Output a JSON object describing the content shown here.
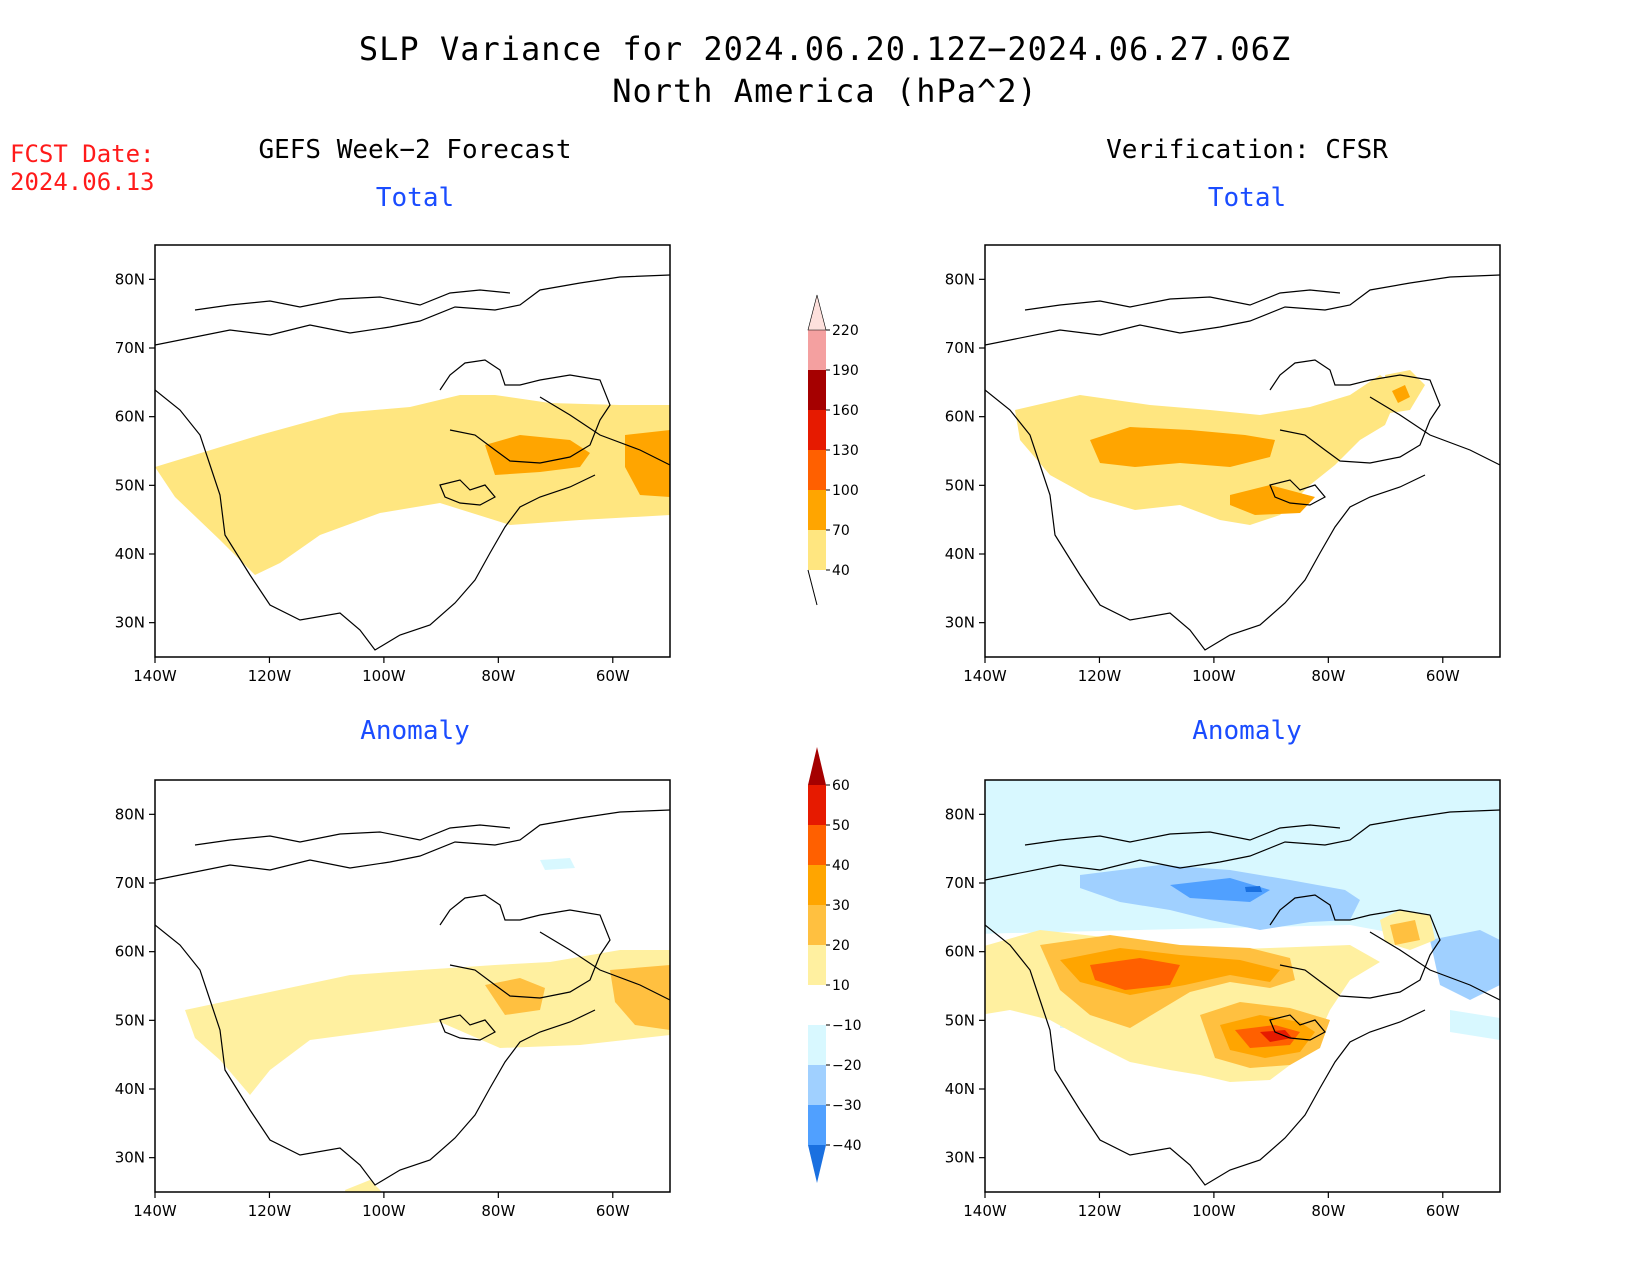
{
  "title": {
    "line1": "SLP Variance for 2024.06.20.12Z−2024.06.27.06Z",
    "line2": "North America (hPa^2)"
  },
  "fcst": {
    "label": "FCST Date:",
    "date": "2024.06.13"
  },
  "columns": {
    "left": "GEFS Week−2 Forecast",
    "right": "Verification: CFSR"
  },
  "panels": {
    "total": "Total",
    "anomaly": "Anomaly"
  },
  "axes": {
    "lat_labels": [
      "80N",
      "70N",
      "60N",
      "50N",
      "40N",
      "30N"
    ],
    "lon_labels": [
      "140W",
      "120W",
      "100W",
      "80W",
      "60W"
    ],
    "lon_range": [
      -140,
      -50
    ],
    "lat_range": [
      25,
      85
    ]
  },
  "colorbars": {
    "total": {
      "levels": [
        "40",
        "70",
        "100",
        "130",
        "160",
        "190",
        "220"
      ],
      "colors": [
        "#ffe680",
        "#ffa500",
        "#ff6000",
        "#e61a00",
        "#a50000",
        "#f4a0a0",
        "#fde0dc"
      ]
    },
    "anomaly": {
      "levels": [
        "60",
        "50",
        "40",
        "30",
        "20",
        "10",
        "−10",
        "−20",
        "−30",
        "−40"
      ],
      "colors": [
        "#a50000",
        "#e61a00",
        "#ff6000",
        "#ffa500",
        "#ffc040",
        "#fff0a0",
        "#ffffff",
        "#d8f8ff",
        "#a0d0ff",
        "#50a0ff",
        "#1a70e0"
      ]
    }
  },
  "colors": {
    "light_yellow": "#ffe680",
    "pale_yellow": "#fff0a0",
    "orange": "#ffa500",
    "orange_light": "#ffc040",
    "red_orange": "#ff6000",
    "red": "#e61a00",
    "dark_red": "#a50000",
    "pale_cyan": "#d8f8ff",
    "light_blue": "#a0d0ff",
    "mid_blue": "#50a0ff",
    "blue": "#1a70e0",
    "header_blue": "#1a4cff",
    "fcst_red": "#ff1a1a"
  }
}
